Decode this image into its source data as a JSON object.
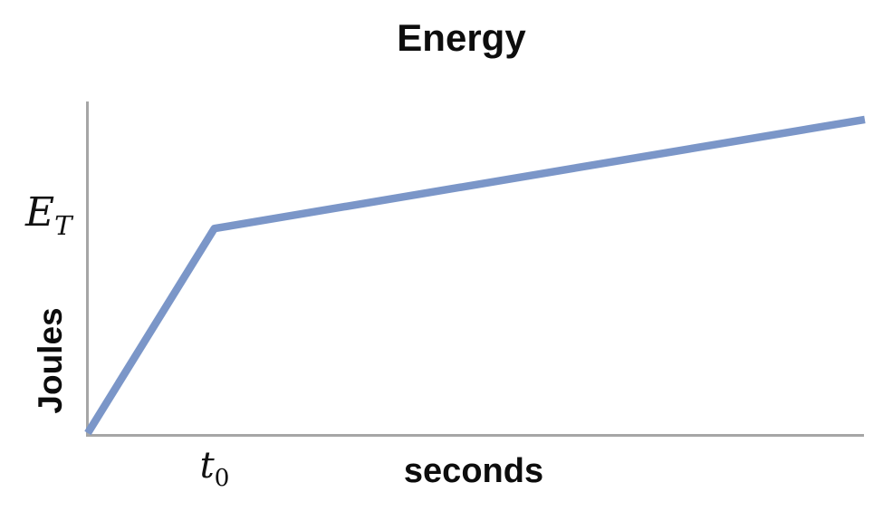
{
  "labels": {
    "title": "Energy",
    "ylabel": "Joules",
    "xlabel": "seconds",
    "y_tick": {
      "base": "E",
      "sub": "T"
    },
    "x_tick": {
      "base": "t",
      "sub": "0"
    }
  },
  "chart_data": {
    "type": "line",
    "title": "Energy",
    "xlabel": "seconds",
    "ylabel": "Joules",
    "x_tick_labels": [
      "t0"
    ],
    "y_tick_labels": [
      "E_T"
    ],
    "axis_color": "#a6a6a6",
    "grid": false,
    "legend": false,
    "series": [
      {
        "name": "Energy vs time",
        "color": "#7b96c8",
        "stroke_width": 8.5,
        "points_normalized": [
          [
            0.001,
            0.008
          ],
          [
            0.164,
            0.62
          ],
          [
            1.001,
            0.946
          ]
        ],
        "description": "Energy rises steeply and linearly from the origin to value E_T at time t0, then continues rising at a much shallower constant slope."
      }
    ],
    "key_points": [
      {
        "x": "0",
        "y": "0"
      },
      {
        "x": "t0",
        "y": "E_T"
      }
    ],
    "xlim_normalized": [
      0,
      1
    ],
    "ylim_normalized": [
      0,
      1
    ]
  }
}
